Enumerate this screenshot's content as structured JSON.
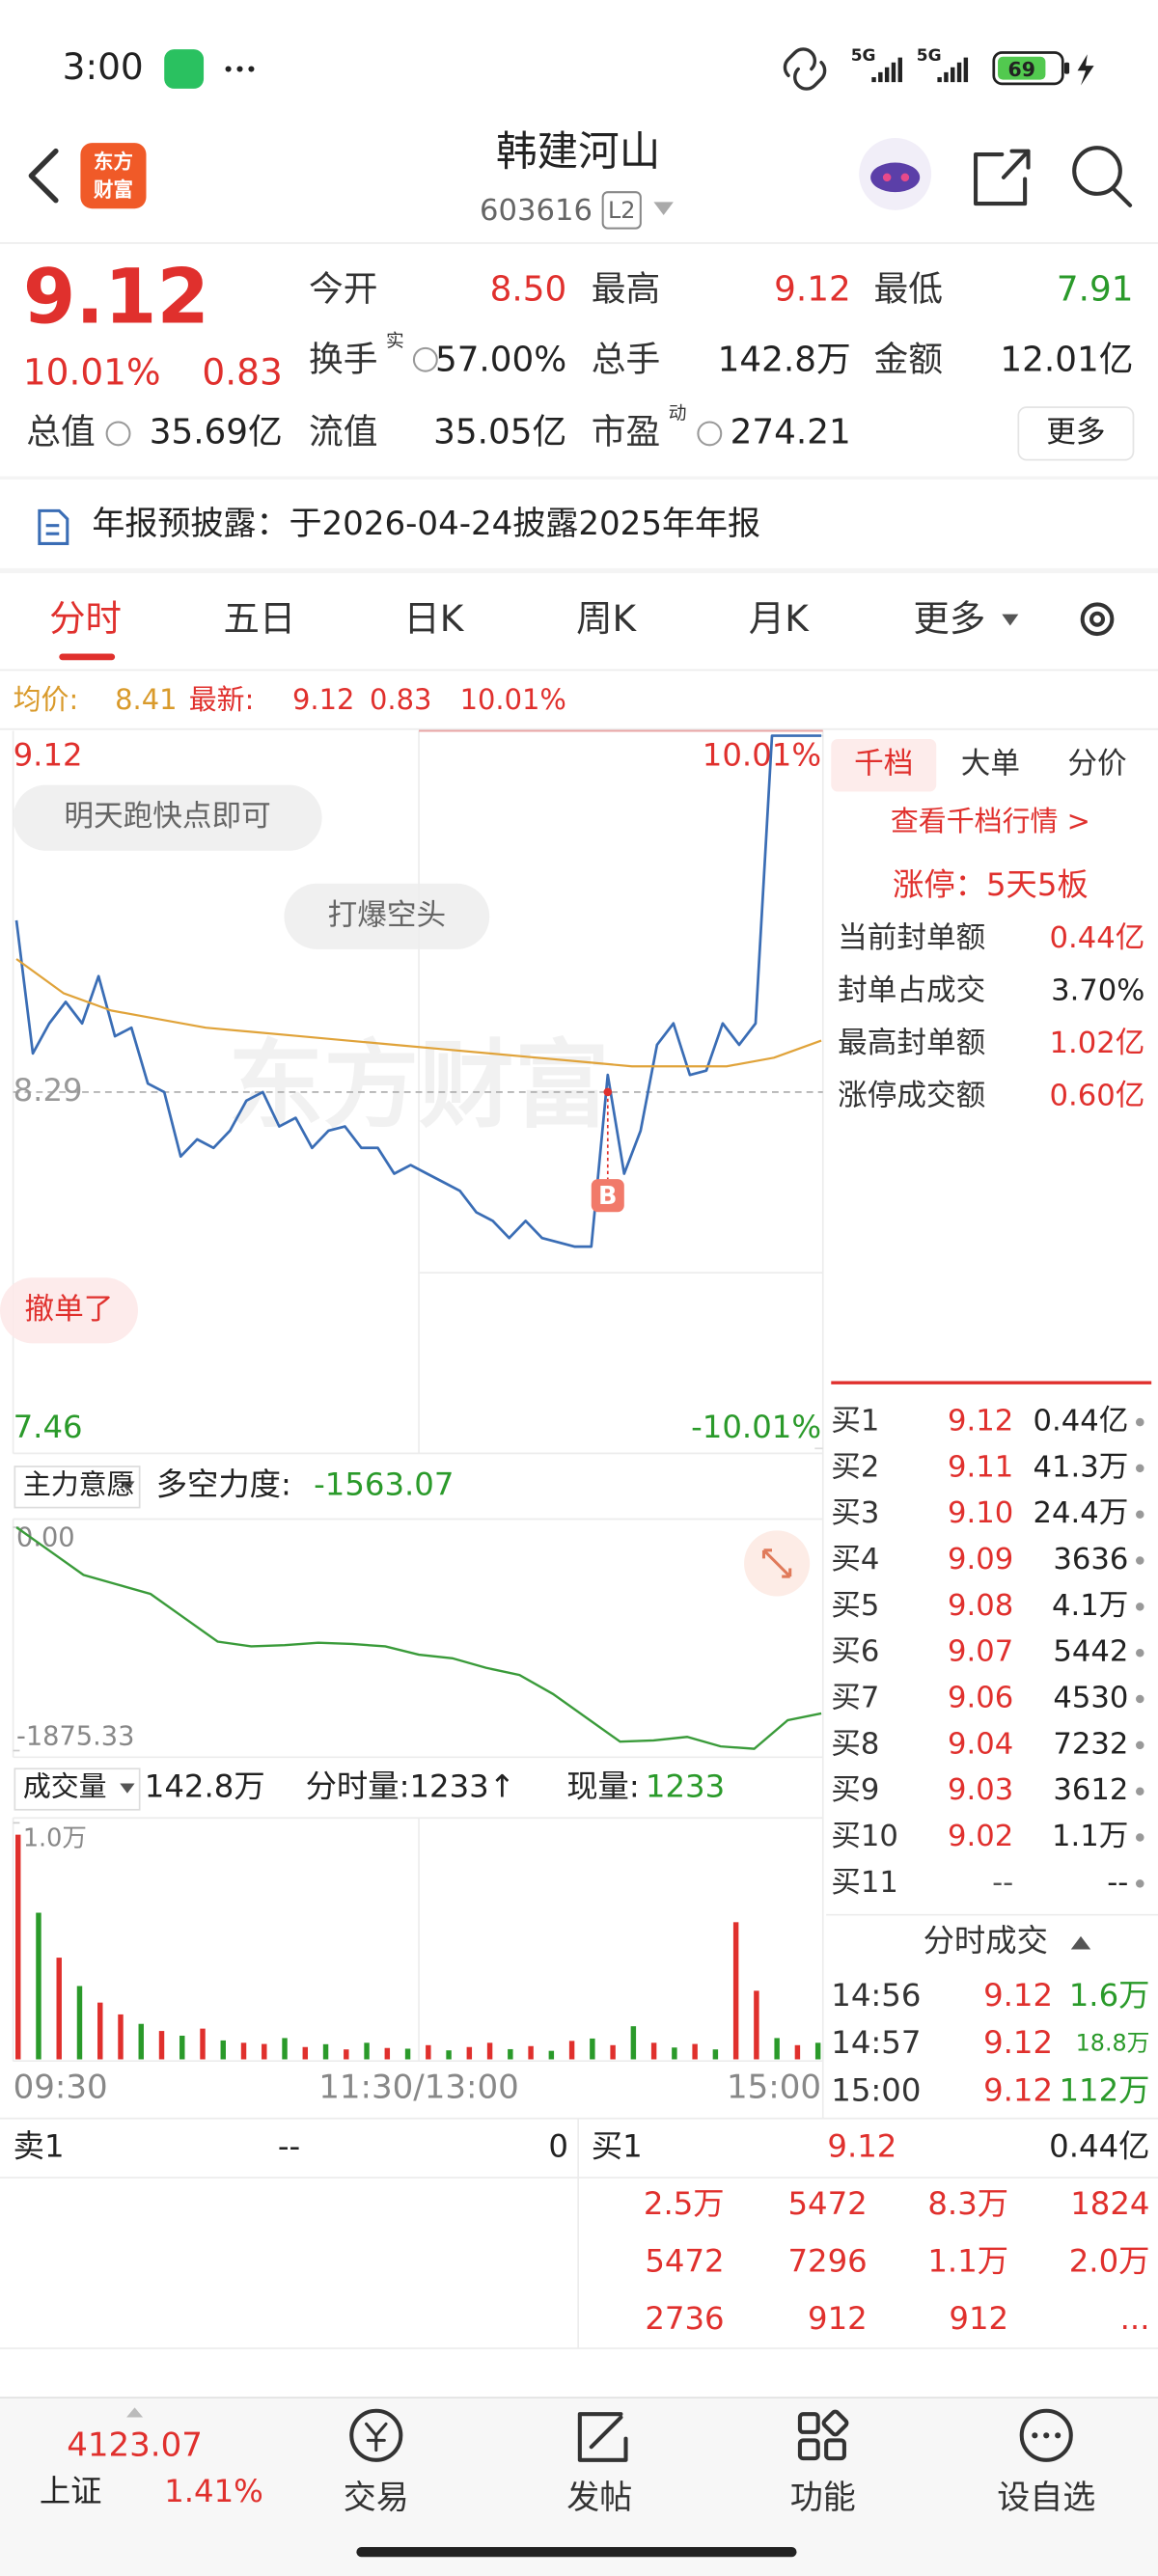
{
  "status_bar": {
    "time": "3:00",
    "network_1": "5G",
    "network_2": "5G",
    "battery": "69"
  },
  "header": {
    "title": "韩建河山",
    "code": "603616",
    "level": "L2",
    "logo_lines": [
      "东方",
      "财富"
    ]
  },
  "quote": {
    "price": "9.12",
    "change_pct": "10.01%",
    "change": "0.83",
    "fields": [
      {
        "label": "今开",
        "value": "8.50"
      },
      {
        "label": "最高",
        "value": "9.12"
      },
      {
        "label": "最低",
        "value": "7.91"
      },
      {
        "label": "换手",
        "sup": "实",
        "value": "57.00%"
      },
      {
        "label": "总手",
        "value": "142.8万"
      },
      {
        "label": "金额",
        "value": "12.01亿"
      },
      {
        "label": "总值",
        "value": "35.69亿"
      },
      {
        "label": "流值",
        "value": "35.05亿"
      },
      {
        "label": "市盈",
        "sup": "动",
        "value": "274.21"
      }
    ],
    "more": "更多"
  },
  "notice": "年报预披露：于2026-04-24披露2025年年报",
  "tabs": [
    "分时",
    "五日",
    "日K",
    "周K",
    "月K",
    "更多"
  ],
  "summary_bar": {
    "avg_label": "均价:",
    "avg": "8.41",
    "last_label": "最新:",
    "last": "9.12",
    "change": "0.83",
    "change_pct": "10.01%"
  },
  "chart_data": [
    {
      "type": "line",
      "ylim": [
        7.46,
        9.12
      ],
      "yticks": [
        7.46,
        8.29,
        9.12
      ],
      "y2lim": [
        -10.01,
        10.01
      ],
      "y2ticks": [
        {
          "value": -10.01,
          "label": "-10.01%"
        },
        {
          "value": 10.01,
          "label": "10.01%"
        }
      ],
      "series": [
        {
          "color": "#3a6db5",
          "values": [
            8.69,
            8.38,
            8.45,
            8.5,
            8.45,
            8.56,
            8.42,
            8.44,
            8.31,
            8.29,
            8.14,
            8.18,
            8.16,
            8.2,
            8.27,
            8.29,
            8.21,
            8.23,
            8.16,
            8.2,
            8.21,
            8.16,
            8.16,
            8.1,
            8.12,
            8.1,
            8.08,
            8.06,
            8.01,
            7.99,
            7.95,
            7.99,
            7.95,
            7.94,
            7.93,
            7.93,
            8.33,
            8.1,
            8.2,
            8.4,
            8.45,
            8.33,
            8.34,
            8.45,
            8.4,
            8.45,
            9.12,
            9.12,
            9.12,
            9.12
          ]
        },
        {
          "color": "#e0a33a",
          "values": [
            8.6,
            8.52,
            8.48,
            8.46,
            8.44,
            8.43,
            8.42,
            8.41,
            8.4,
            8.39,
            8.38,
            8.37,
            8.36,
            8.35,
            8.35,
            8.35,
            8.37,
            8.41
          ]
        }
      ],
      "annotations": [
        "明天跑快点即可",
        "打爆空头",
        "撤单了"
      ],
      "trade_marker": "B",
      "watermark": "东方财富"
    },
    {
      "type": "line",
      "selector": "主力意愿",
      "label": "多空力度:",
      "value_text": "-1563.07",
      "ylim": [
        -1875.33,
        0
      ],
      "yticks": [
        {
          "value": 0,
          "label": "0.00"
        },
        -1875.33
      ],
      "series": [
        {
          "color": "#3a9b3a",
          "values": [
            0,
            -200,
            -400,
            -480,
            -560,
            -760,
            -960,
            -1000,
            -990,
            -970,
            -980,
            -1000,
            -1070,
            -1100,
            -1180,
            -1240,
            -1400,
            -1600,
            -1800,
            -1790,
            -1760,
            -1840,
            -1860,
            -1620,
            -1563
          ]
        }
      ]
    },
    {
      "type": "bar",
      "selector": "成交量",
      "total": "142.8万",
      "minute_label": "分时量:1233↑",
      "current_label": "现量:",
      "current": "1233",
      "ylim": [
        0,
        10000
      ],
      "yticks": [
        {
          "value": 10000,
          "label": "1.0万"
        }
      ],
      "values": [
        9500,
        6200,
        4300,
        3100,
        2400,
        1900,
        1500,
        1200,
        1000,
        1300,
        800,
        700,
        650,
        900,
        520,
        640,
        420,
        700,
        480,
        450,
        600,
        380,
        520,
        700,
        430,
        560,
        360,
        780,
        880,
        600,
        1400,
        700,
        500,
        650,
        420,
        5800,
        2900,
        900,
        600,
        700
      ],
      "colors": [
        "#e0302d",
        "#2a9a2a",
        "#e0302d",
        "#2a9a2a",
        "#e0302d",
        "#e0302d",
        "#2a9a2a",
        "#e0302d",
        "#2a9a2a",
        "#e0302d",
        "#2a9a2a",
        "#e0302d",
        "#e0302d",
        "#2a9a2a",
        "#e0302d",
        "#2a9a2a",
        "#e0302d",
        "#2a9a2a",
        "#e0302d",
        "#2a9a2a",
        "#e0302d",
        "#2a9a2a",
        "#e0302d",
        "#e0302d",
        "#2a9a2a",
        "#e0302d",
        "#2a9a2a",
        "#e0302d",
        "#2a9a2a",
        "#e0302d",
        "#2a9a2a",
        "#e0302d",
        "#2a9a2a",
        "#e0302d",
        "#2a9a2a",
        "#e0302d",
        "#e0302d",
        "#2a9a2a",
        "#e0302d",
        "#2a9a2a"
      ],
      "time_labels": [
        "09:30",
        "11:30/13:00",
        "15:00"
      ]
    }
  ],
  "right_panel": {
    "tabs": [
      "千档",
      "大单",
      "分价"
    ],
    "link": "查看千档行情 >",
    "limit_up": "涨停：5天5板",
    "stats": [
      {
        "label": "当前封单额",
        "value": "0.44亿"
      },
      {
        "label": "封单占成交",
        "value": "3.70%"
      },
      {
        "label": "最高封单额",
        "value": "1.02亿"
      },
      {
        "label": "涨停成交额",
        "value": "0.60亿"
      }
    ],
    "bids": [
      {
        "label": "买1",
        "price": "9.12",
        "volume": "0.44亿"
      },
      {
        "label": "买2",
        "price": "9.11",
        "volume": "41.3万"
      },
      {
        "label": "买3",
        "price": "9.10",
        "volume": "24.4万"
      },
      {
        "label": "买4",
        "price": "9.09",
        "volume": "3636"
      },
      {
        "label": "买5",
        "price": "9.08",
        "volume": "4.1万"
      },
      {
        "label": "买6",
        "price": "9.07",
        "volume": "5442"
      },
      {
        "label": "买7",
        "price": "9.06",
        "volume": "4530"
      },
      {
        "label": "买8",
        "price": "9.04",
        "volume": "7232"
      },
      {
        "label": "买9",
        "price": "9.03",
        "volume": "3612"
      },
      {
        "label": "买10",
        "price": "9.02",
        "volume": "1.1万"
      },
      {
        "label": "买11",
        "price": "--",
        "volume": "--"
      }
    ],
    "trades_title": "分时成交",
    "trades": [
      {
        "time": "14:56",
        "price": "9.12",
        "volume": "1.6万"
      },
      {
        "time": "14:57",
        "price": "9.12",
        "volume": "18.8万"
      },
      {
        "time": "15:00",
        "price": "9.12",
        "volume": "112万"
      }
    ]
  },
  "level1": {
    "ask_label": "卖1",
    "ask_price": "--",
    "ask_volume": "0",
    "bid_label": "买1",
    "bid_price": "9.12",
    "bid_volume": "0.44亿",
    "queue": [
      [
        "2.5万",
        "5472",
        "8.3万",
        "1824"
      ],
      [
        "5472",
        "7296",
        "1.1万",
        "2.0万"
      ],
      [
        "2736",
        "912",
        "912",
        "..."
      ]
    ]
  },
  "bottom_nav": {
    "index_value": "4123.07",
    "index_name": "上证",
    "index_change": "1.41%",
    "items": [
      "交易",
      "发帖",
      "功能",
      "设自选"
    ]
  }
}
